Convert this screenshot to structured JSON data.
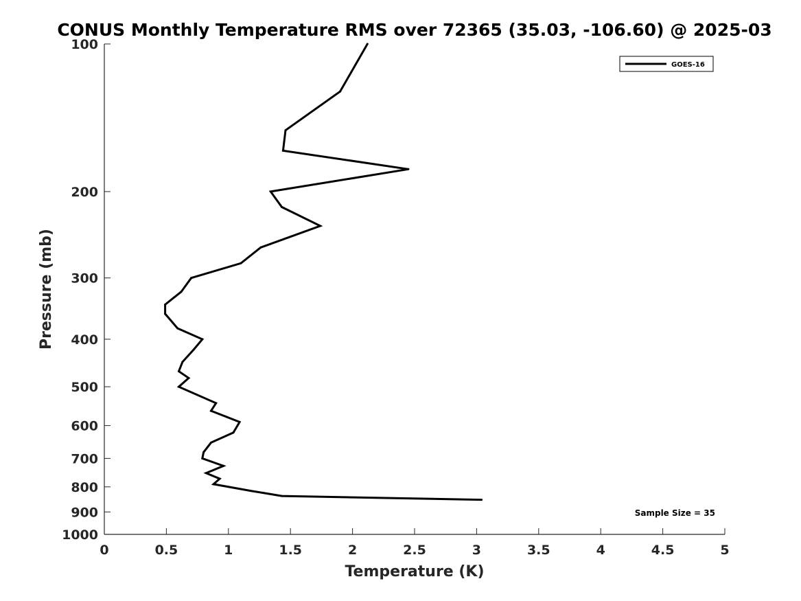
{
  "chart_data": {
    "type": "line",
    "title": "CONUS Monthly Temperature RMS over 72365 (35.03, -106.60) @ 2025-03",
    "xlabel": "Temperature (K)",
    "ylabel": "Pressure (mb)",
    "xlim": [
      0,
      5
    ],
    "ylim": [
      100,
      1000
    ],
    "y_scale": "log",
    "y_reversed": true,
    "x_ticks": [
      "0",
      "0.5",
      "1",
      "1.5",
      "2",
      "2.5",
      "3",
      "3.5",
      "4",
      "4.5",
      "5"
    ],
    "y_ticks": [
      "100",
      "200",
      "300",
      "400",
      "500",
      "600",
      "700",
      "800",
      "900",
      "1000"
    ],
    "grid": false,
    "legend_position": "top-right",
    "annotation": "Sample Size = 35",
    "series": [
      {
        "name": "GOES-16",
        "color": "#000000",
        "x": [
          2.12,
          1.9,
          1.46,
          1.44,
          2.45,
          1.34,
          1.43,
          1.74,
          1.26,
          1.1,
          0.7,
          0.62,
          0.49,
          0.49,
          0.59,
          0.79,
          0.72,
          0.63,
          0.6,
          0.68,
          0.6,
          0.9,
          0.86,
          1.09,
          1.04,
          0.86,
          0.8,
          0.79,
          0.96,
          0.82,
          0.93,
          0.88,
          1.18,
          1.43,
          3.04
        ],
        "y": [
          100,
          125,
          150,
          165,
          180,
          200,
          215,
          235,
          260,
          280,
          300,
          320,
          340,
          355,
          380,
          400,
          420,
          445,
          465,
          480,
          500,
          540,
          560,
          590,
          620,
          650,
          680,
          700,
          725,
          750,
          770,
          790,
          815,
          835,
          850
        ]
      }
    ]
  }
}
